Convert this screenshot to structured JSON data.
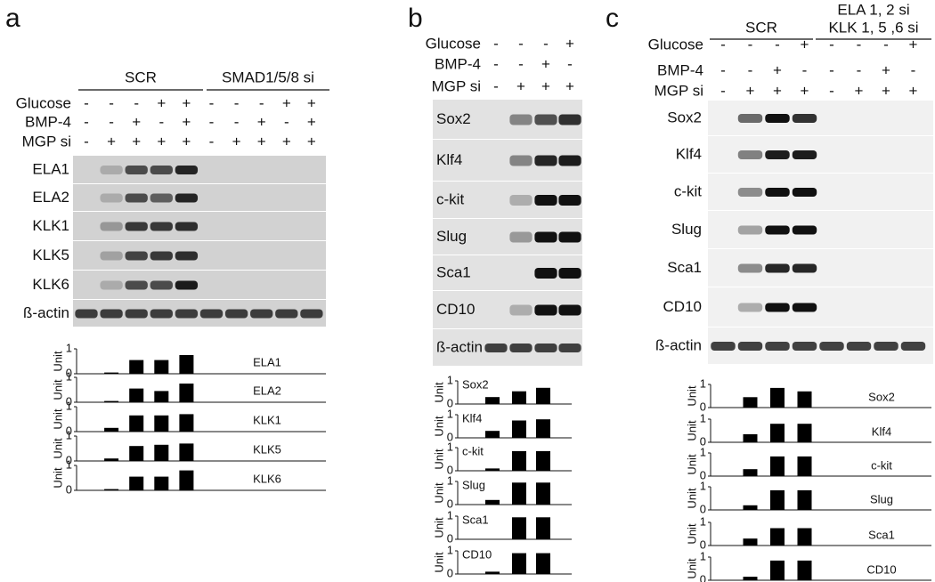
{
  "panels": [
    {
      "letter": "a",
      "groups": [
        {
          "lines": [
            "SCR"
          ]
        },
        {
          "lines": [
            "SMAD1/5/8 si"
          ]
        }
      ],
      "conditions": [
        {
          "label": "Glucose",
          "signs": [
            "-",
            "-",
            "-",
            "+",
            "+",
            "-",
            "-",
            "-",
            "+",
            "+"
          ]
        },
        {
          "label": "BMP-4",
          "signs": [
            "-",
            "-",
            "+",
            "-",
            "+",
            "-",
            "-",
            "+",
            "-",
            "+"
          ]
        },
        {
          "label": "MGP si",
          "signs": [
            "-",
            "+",
            "+",
            "+",
            "+",
            "-",
            "+",
            "+",
            "+",
            "+"
          ]
        }
      ],
      "blots": [
        "ELA1",
        "ELA2",
        "KLK1",
        "KLK5",
        "KLK6",
        "ß-actin"
      ],
      "charts": [
        {
          "label": "ELA1",
          "y_label": "Unit",
          "ylim": [
            0,
            1
          ],
          "yticks": [
            0,
            1
          ],
          "values": [
            0,
            0.05,
            0.55,
            0.55,
            0.75,
            0,
            0,
            0,
            0,
            0
          ]
        },
        {
          "label": "ELA2",
          "y_label": "Unit",
          "ylim": [
            0,
            1
          ],
          "yticks": [
            0,
            1
          ],
          "values": [
            0,
            0.05,
            0.55,
            0.45,
            0.75,
            0,
            0,
            0,
            0,
            0
          ]
        },
        {
          "label": "KLK1",
          "y_label": "Unit",
          "ylim": [
            0,
            1
          ],
          "yticks": [
            0,
            1
          ],
          "values": [
            0,
            0.15,
            0.65,
            0.65,
            0.7,
            0,
            0,
            0,
            0,
            0
          ]
        },
        {
          "label": "KLK5",
          "y_label": "Unit",
          "ylim": [
            0,
            1
          ],
          "yticks": [
            0,
            1
          ],
          "values": [
            0,
            0.1,
            0.6,
            0.65,
            0.7,
            0,
            0,
            0,
            0,
            0
          ]
        },
        {
          "label": "KLK6",
          "y_label": "Unit",
          "ylim": [
            0,
            1
          ],
          "yticks": [
            0,
            1
          ],
          "values": [
            0,
            0.05,
            0.55,
            0.55,
            0.8,
            0,
            0,
            0,
            0,
            0
          ]
        }
      ]
    },
    {
      "letter": "b",
      "groups": [],
      "conditions": [
        {
          "label": "Glucose",
          "signs": [
            "-",
            "-",
            "-",
            "+"
          ]
        },
        {
          "label": "BMP-4",
          "signs": [
            "-",
            "-",
            "+",
            "-"
          ]
        },
        {
          "label": "MGP si",
          "signs": [
            "-",
            "+",
            "+",
            "+"
          ]
        }
      ],
      "blots": [
        "Sox2",
        "Klf4",
        "c-kit",
        "Slug",
        "Sca1",
        "CD10",
        "ß-actin"
      ],
      "charts": [
        {
          "label": "Sox2",
          "y_label": "Unit",
          "ylim": [
            0,
            1
          ],
          "yticks": [
            0,
            1
          ],
          "values": [
            0,
            0.3,
            0.55,
            0.7
          ]
        },
        {
          "label": "Klf4",
          "y_label": "Unit",
          "ylim": [
            0,
            1
          ],
          "yticks": [
            0,
            1
          ],
          "values": [
            0,
            0.3,
            0.75,
            0.8
          ]
        },
        {
          "label": "c-kit",
          "y_label": "Unit",
          "ylim": [
            0,
            1
          ],
          "yticks": [
            0,
            1
          ],
          "values": [
            0,
            0.1,
            0.85,
            0.85
          ]
        },
        {
          "label": "Slug",
          "y_label": "Unit",
          "ylim": [
            0,
            1
          ],
          "yticks": [
            0,
            1
          ],
          "values": [
            0,
            0.2,
            0.95,
            0.95
          ]
        },
        {
          "label": "Sca1",
          "y_label": "Unit",
          "ylim": [
            0,
            1
          ],
          "yticks": [
            0,
            1
          ],
          "values": [
            0,
            0,
            0.95,
            0.95
          ]
        },
        {
          "label": "CD10",
          "y_label": "Unit",
          "ylim": [
            0,
            1
          ],
          "yticks": [
            0,
            1
          ],
          "values": [
            0,
            0.1,
            0.9,
            0.9
          ]
        }
      ]
    },
    {
      "letter": "c",
      "groups": [
        {
          "lines": [
            "SCR"
          ]
        },
        {
          "lines": [
            "ELA 1, 2 si",
            "KLK 1, 5 ,6 si"
          ]
        }
      ],
      "conditions": [
        {
          "label": "Glucose",
          "signs": [
            "-",
            "-",
            "-",
            "+",
            "-",
            "-",
            "-",
            "+"
          ]
        },
        {
          "label": "BMP-4",
          "signs": [
            "-",
            "-",
            "+",
            "-",
            "-",
            "-",
            "+",
            "-"
          ]
        },
        {
          "label": "MGP si",
          "signs": [
            "-",
            "+",
            "+",
            "+",
            "-",
            "+",
            "+",
            "+"
          ]
        }
      ],
      "blots": [
        "Sox2",
        "Klf4",
        "c-kit",
        "Slug",
        "Sca1",
        "CD10",
        "ß-actin"
      ],
      "charts": [
        {
          "label": "Sox2",
          "y_label": "Unit",
          "ylim": [
            0,
            1
          ],
          "yticks": [
            0,
            1
          ],
          "values": [
            0,
            0.45,
            0.85,
            0.7,
            0,
            0,
            0,
            0
          ]
        },
        {
          "label": "Klf4",
          "y_label": "Unit",
          "ylim": [
            0,
            1
          ],
          "yticks": [
            0,
            1
          ],
          "values": [
            0,
            0.35,
            0.8,
            0.8,
            0,
            0,
            0,
            0
          ]
        },
        {
          "label": "c-kit",
          "y_label": "Unit",
          "ylim": [
            0,
            1
          ],
          "yticks": [
            0,
            1
          ],
          "values": [
            0,
            0.3,
            0.85,
            0.85,
            0,
            0,
            0,
            0
          ]
        },
        {
          "label": "Slug",
          "y_label": "Unit",
          "ylim": [
            0,
            1
          ],
          "yticks": [
            0,
            1
          ],
          "values": [
            0,
            0.2,
            0.85,
            0.85,
            0,
            0,
            0,
            0
          ]
        },
        {
          "label": "Sca1",
          "y_label": "Unit",
          "ylim": [
            0,
            1
          ],
          "yticks": [
            0,
            1
          ],
          "values": [
            0,
            0.3,
            0.75,
            0.75,
            0,
            0,
            0,
            0
          ]
        },
        {
          "label": "CD10",
          "y_label": "Unit",
          "ylim": [
            0,
            1
          ],
          "yticks": [
            0,
            1
          ],
          "values": [
            0,
            0.15,
            0.85,
            0.85,
            0,
            0,
            0,
            0
          ]
        }
      ]
    }
  ]
}
